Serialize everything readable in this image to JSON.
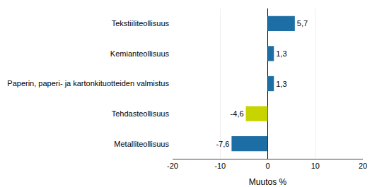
{
  "chart_data": {
    "type": "bar",
    "orientation": "horizontal",
    "categories": [
      "Tekstiiliteollisuus",
      "Kemianteollisuus",
      "Paperin, paperi- ja kartonkituotteiden valmistus",
      "Tehdasteollisuus",
      "Metalliteollisuus"
    ],
    "values": [
      5.7,
      1.3,
      1.3,
      -4.6,
      -7.6
    ],
    "value_labels": [
      "5,7",
      "1,3",
      "1,3",
      "-4,6",
      "-7,6"
    ],
    "data_labels": true,
    "colors": [
      "#1c6ea4",
      "#1c6ea4",
      "#1c6ea4",
      "#c8d400",
      "#1c6ea4"
    ],
    "xlabel": "Muutos %",
    "xlim": [
      -20,
      20
    ],
    "xticks": [
      -20,
      -10,
      0,
      10,
      20
    ],
    "grid": true
  }
}
